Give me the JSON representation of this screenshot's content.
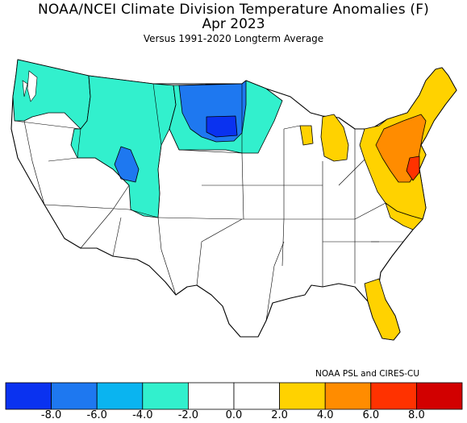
{
  "header": {
    "title": "NOAA/NCEI Climate Division Temperature Anomalies (F)",
    "period": "Apr 2023",
    "subtitle": "Versus 1991-2020 Longterm Average"
  },
  "credit": "NOAA PSL and CIRES-CU",
  "legend": {
    "colors": [
      "#0a32f0",
      "#1e78f0",
      "#0ab4f0",
      "#32f0cd",
      "#ffffff",
      "#ffffff",
      "#ffd200",
      "#ff8c00",
      "#ff3200",
      "#d20000"
    ],
    "ticks": [
      "-8.0",
      "-6.0",
      "-4.0",
      "-2.0",
      "0.0",
      "2.0",
      "4.0",
      "6.0",
      "8.0"
    ]
  },
  "map_colors": {
    "cool_light": "#32f0cd",
    "cool_mid": "#1e78f0",
    "cool_dark": "#0a32f0",
    "warm_light": "#ffd200",
    "warm_mid": "#ff8c00",
    "warm_dark": "#ff3200",
    "neutral": "#ffffff"
  }
}
